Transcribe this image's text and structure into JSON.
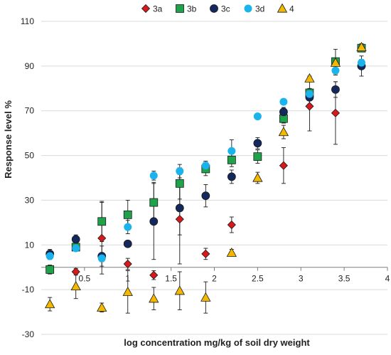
{
  "chart_data": {
    "type": "scatter",
    "title": "",
    "xlabel": "log concentration mg/kg of soil dry weight",
    "ylabel": "Response level %",
    "xlim": [
      0,
      4
    ],
    "ylim": [
      -30,
      110
    ],
    "xticks": [
      0.5,
      1,
      1.5,
      2,
      2.5,
      3,
      3.5,
      4
    ],
    "xtick_labels": [
      "0.5",
      "1",
      "1.5",
      "2",
      "2.5",
      "3",
      "3.5",
      "4"
    ],
    "yticks": [
      -30,
      -10,
      10,
      30,
      50,
      70,
      90,
      110
    ],
    "ytick_labels": [
      "-30",
      "-10",
      "10",
      "30",
      "50",
      "70",
      "90",
      "110"
    ],
    "grid": "horizontal",
    "legend_position": "top",
    "series": [
      {
        "name": "3a",
        "marker": "diamond",
        "color": "#d7191c",
        "points": [
          {
            "x": 0.4,
            "y": -2,
            "err": 1.5
          },
          {
            "x": 0.7,
            "y": 13,
            "err": 16
          },
          {
            "x": 1.0,
            "y": 1.5,
            "err": 2.5
          },
          {
            "x": 1.3,
            "y": -3.5,
            "err": 2
          },
          {
            "x": 1.6,
            "y": 21.5,
            "err": 20
          },
          {
            "x": 1.9,
            "y": 6,
            "err": 2.5
          },
          {
            "x": 2.2,
            "y": 19,
            "err": 3.5
          },
          {
            "x": 2.8,
            "y": 45.5,
            "err": 8
          },
          {
            "x": 3.1,
            "y": 72,
            "err": 11
          },
          {
            "x": 3.4,
            "y": 69,
            "err": 14
          },
          {
            "x": 3.7,
            "y": 90,
            "err": 1.5
          }
        ]
      },
      {
        "name": "3b",
        "marker": "square",
        "color": "#1fa34a",
        "points": [
          {
            "x": 0.1,
            "y": -1,
            "err": 2
          },
          {
            "x": 0.4,
            "y": 9,
            "err": 1.5
          },
          {
            "x": 0.7,
            "y": 20.5,
            "err": 9
          },
          {
            "x": 1.0,
            "y": 23.5,
            "err": 6.5
          },
          {
            "x": 1.3,
            "y": 29,
            "err": 9
          },
          {
            "x": 1.6,
            "y": 37.5,
            "err": 7
          },
          {
            "x": 1.9,
            "y": 44,
            "err": 3
          },
          {
            "x": 2.2,
            "y": 48,
            "err": 3
          },
          {
            "x": 2.5,
            "y": 49.5,
            "err": 3
          },
          {
            "x": 2.8,
            "y": 66.5,
            "err": 2
          },
          {
            "x": 3.1,
            "y": 78,
            "err": 2
          },
          {
            "x": 3.4,
            "y": 92,
            "err": 5.5
          },
          {
            "x": 3.7,
            "y": 98,
            "err": 1.5
          }
        ]
      },
      {
        "name": "3c",
        "marker": "circle",
        "color": "#14285e",
        "points": [
          {
            "x": 0.1,
            "y": 6,
            "err": 2
          },
          {
            "x": 0.4,
            "y": 12.5,
            "err": 2
          },
          {
            "x": 0.7,
            "y": 5,
            "err": 4.5
          },
          {
            "x": 1.0,
            "y": 10.5,
            "err": 1.5
          },
          {
            "x": 1.3,
            "y": 20.5,
            "err": 17
          },
          {
            "x": 1.6,
            "y": 26.5,
            "err": 12
          },
          {
            "x": 1.9,
            "y": 32,
            "err": 5
          },
          {
            "x": 2.2,
            "y": 40.5,
            "err": 3
          },
          {
            "x": 2.5,
            "y": 55.5,
            "err": 2.5
          },
          {
            "x": 2.8,
            "y": 69.5,
            "err": 2
          },
          {
            "x": 3.1,
            "y": 76,
            "err": 3
          },
          {
            "x": 3.4,
            "y": 79.5,
            "err": 3.5
          },
          {
            "x": 3.7,
            "y": 90,
            "err": 4.5
          }
        ]
      },
      {
        "name": "3d",
        "marker": "circle",
        "color": "#1ab3ec",
        "points": [
          {
            "x": 0.1,
            "y": 5,
            "err": 1.5
          },
          {
            "x": 0.4,
            "y": 8.5,
            "err": 1
          },
          {
            "x": 0.7,
            "y": 4,
            "err": 1.5
          },
          {
            "x": 1.0,
            "y": 18,
            "err": 3
          },
          {
            "x": 1.3,
            "y": 41,
            "err": 2
          },
          {
            "x": 1.6,
            "y": 43,
            "err": 3
          },
          {
            "x": 1.9,
            "y": 45.5,
            "err": 2
          },
          {
            "x": 2.2,
            "y": 52,
            "err": 5
          },
          {
            "x": 2.5,
            "y": 67.5,
            "err": 1
          },
          {
            "x": 2.8,
            "y": 74,
            "err": 1
          },
          {
            "x": 3.1,
            "y": 77.5,
            "err": 1
          },
          {
            "x": 3.4,
            "y": 88,
            "err": 2
          },
          {
            "x": 3.7,
            "y": 91.5,
            "err": 1.5
          }
        ]
      },
      {
        "name": "4",
        "marker": "triangle",
        "color": "#f5b800",
        "points": [
          {
            "x": 0.1,
            "y": -16.5,
            "err": 3
          },
          {
            "x": 0.4,
            "y": -8.5,
            "err": 5.5
          },
          {
            "x": 0.7,
            "y": -18,
            "err": 2
          },
          {
            "x": 1.0,
            "y": -11,
            "err": 9.5
          },
          {
            "x": 1.3,
            "y": -14,
            "err": 5
          },
          {
            "x": 1.6,
            "y": -10.5,
            "err": 8.5
          },
          {
            "x": 1.9,
            "y": -13.5,
            "err": 7
          },
          {
            "x": 2.2,
            "y": 6.5,
            "err": 1.5
          },
          {
            "x": 2.5,
            "y": 40,
            "err": 2.5
          },
          {
            "x": 2.8,
            "y": 60.5,
            "err": 3
          },
          {
            "x": 3.1,
            "y": 84.5,
            "err": 1
          },
          {
            "x": 3.4,
            "y": 91.5,
            "err": 1
          },
          {
            "x": 3.7,
            "y": 98.5,
            "err": 1.5
          }
        ]
      }
    ]
  }
}
